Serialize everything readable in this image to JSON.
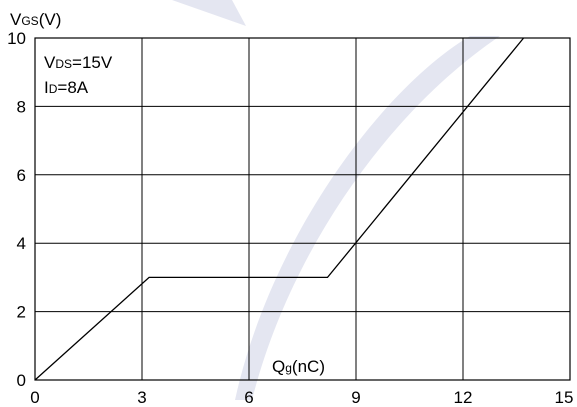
{
  "chart_data": {
    "type": "line",
    "title": "",
    "ylabel": {
      "main": "V",
      "sub": "GS",
      "tail": "(V)"
    },
    "xlabel": {
      "main": "Q",
      "sub": "g",
      "tail": "(nC)"
    },
    "annotations": [
      {
        "main": "V",
        "sub": "DS",
        "tail": "=15V"
      },
      {
        "main": "I",
        "sub": "D",
        "tail": "=8A"
      }
    ],
    "xlim": [
      0,
      15
    ],
    "ylim": [
      0,
      10
    ],
    "x_ticks": [
      0,
      3,
      6,
      9,
      12,
      15
    ],
    "y_ticks": [
      0,
      2,
      4,
      6,
      8,
      10
    ],
    "grid": true,
    "legend": "none",
    "series": [
      {
        "x": [
          0,
          3.2,
          8.2,
          13.7
        ],
        "y": [
          0,
          3.0,
          3.0,
          10.0
        ]
      }
    ],
    "colors": {
      "line": "#000000",
      "grid": "#000000",
      "watermark": "#e4e6f1"
    }
  }
}
